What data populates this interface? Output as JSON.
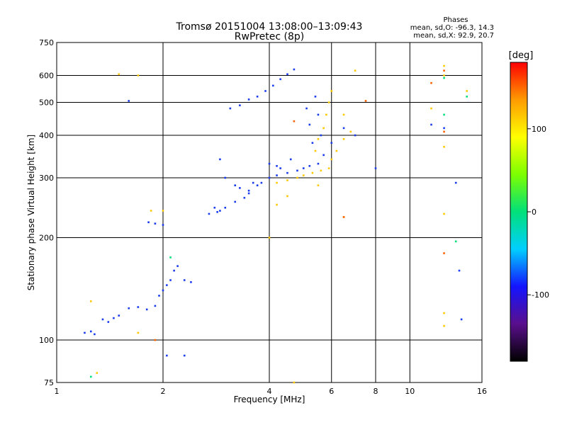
{
  "header": {
    "title": "Tromsø 20151004 13:08:00–13:09:43",
    "subtitle": "RwPretec (8p)"
  },
  "phases": {
    "heading": "Phases",
    "line1": "mean, sd,O: -96.3, 14.3",
    "line2": "mean, sd,X:  92.9, 20.7"
  },
  "colorbar": {
    "label": "[deg]",
    "min": -180,
    "max": 180,
    "ticks": [
      100,
      0,
      -100
    ],
    "tick_labels": [
      "100",
      "0",
      "-100"
    ],
    "stops": [
      "#000000",
      "#5a0f8c",
      "#1414ff",
      "#00cfff",
      "#00e07a",
      "#7cff00",
      "#ffff00",
      "#ff9b00",
      "#ff0000"
    ]
  },
  "chart_data": {
    "type": "scatter",
    "xlabel": "Frequency [MHz]",
    "ylabel": "Stationary phase Virtual Height [km]",
    "xscale": "log",
    "yscale": "log",
    "xlim": [
      1,
      16
    ],
    "ylim": [
      75,
      750
    ],
    "xticks": [
      1,
      2,
      4,
      6,
      8,
      10,
      16
    ],
    "xtick_labels": [
      "1",
      "2",
      "4",
      "6",
      "8",
      "10",
      "16"
    ],
    "yticks": [
      750,
      600,
      500,
      400,
      300,
      200,
      100,
      75
    ],
    "ytick_labels": [
      "750",
      "600",
      "500",
      "400",
      "300",
      "200",
      "100",
      "75"
    ],
    "grid": true,
    "series": [
      {
        "mode": "O",
        "color": "#1a3cf0",
        "points": [
          [
            1.2,
            105
          ],
          [
            1.25,
            106
          ],
          [
            1.28,
            104
          ],
          [
            1.35,
            115
          ],
          [
            1.4,
            113
          ],
          [
            1.45,
            116
          ],
          [
            1.5,
            118
          ],
          [
            1.6,
            124
          ],
          [
            1.7,
            125
          ],
          [
            1.8,
            123
          ],
          [
            1.9,
            126
          ],
          [
            1.95,
            135
          ],
          [
            2.0,
            140
          ],
          [
            2.05,
            145
          ],
          [
            2.1,
            150
          ],
          [
            2.15,
            160
          ],
          [
            2.2,
            165
          ],
          [
            2.3,
            150
          ],
          [
            2.4,
            148
          ],
          [
            1.82,
            222
          ],
          [
            1.9,
            220
          ],
          [
            2.0,
            218
          ],
          [
            2.05,
            90
          ],
          [
            2.7,
            235
          ],
          [
            2.8,
            245
          ],
          [
            2.85,
            238
          ],
          [
            2.9,
            240
          ],
          [
            3.0,
            245
          ],
          [
            3.2,
            255
          ],
          [
            3.4,
            262
          ],
          [
            3.5,
            270
          ],
          [
            3.7,
            285
          ],
          [
            3.8,
            290
          ],
          [
            4.0,
            300
          ],
          [
            4.2,
            305
          ],
          [
            4.5,
            310
          ],
          [
            4.8,
            315
          ],
          [
            5.0,
            320
          ],
          [
            5.2,
            325
          ],
          [
            5.5,
            330
          ],
          [
            3.1,
            480
          ],
          [
            3.3,
            490
          ],
          [
            3.5,
            510
          ],
          [
            3.7,
            520
          ],
          [
            3.9,
            540
          ],
          [
            4.1,
            560
          ],
          [
            4.3,
            585
          ],
          [
            4.5,
            605
          ],
          [
            4.7,
            625
          ],
          [
            5.1,
            480
          ],
          [
            5.2,
            430
          ],
          [
            5.3,
            380
          ],
          [
            5.4,
            520
          ],
          [
            5.5,
            460
          ],
          [
            5.6,
            400
          ],
          [
            5.7,
            350
          ],
          [
            2.9,
            340
          ],
          [
            3.0,
            300
          ],
          [
            3.3,
            280
          ],
          [
            3.5,
            275
          ],
          [
            4.0,
            330
          ],
          [
            4.3,
            320
          ],
          [
            4.6,
            340
          ],
          [
            3.2,
            285
          ],
          [
            3.6,
            290
          ],
          [
            4.2,
            325
          ],
          [
            6.0,
            380
          ],
          [
            6.5,
            420
          ],
          [
            7.0,
            400
          ],
          [
            8.0,
            320
          ],
          [
            11.5,
            430
          ],
          [
            12.5,
            420
          ],
          [
            13.5,
            290
          ],
          [
            13.8,
            160
          ],
          [
            14.0,
            115
          ],
          [
            1.6,
            505
          ],
          [
            2.3,
            90
          ]
        ]
      },
      {
        "mode": "X",
        "color": "#ffc800",
        "points": [
          [
            4.2,
            290
          ],
          [
            4.5,
            295
          ],
          [
            4.8,
            300
          ],
          [
            5.0,
            305
          ],
          [
            5.3,
            310
          ],
          [
            5.6,
            315
          ],
          [
            5.9,
            320
          ],
          [
            6.0,
            340
          ],
          [
            6.2,
            360
          ],
          [
            6.5,
            390
          ],
          [
            6.8,
            410
          ],
          [
            5.4,
            360
          ],
          [
            5.5,
            390
          ],
          [
            5.7,
            420
          ],
          [
            5.8,
            460
          ],
          [
            5.9,
            500
          ],
          [
            6.0,
            540
          ],
          [
            6.5,
            460
          ],
          [
            1.85,
            240
          ],
          [
            2.0,
            240
          ],
          [
            1.5,
            605
          ],
          [
            1.7,
            600
          ],
          [
            12.5,
            640
          ],
          [
            12.5,
            600
          ],
          [
            14.5,
            540
          ],
          [
            12.5,
            370
          ],
          [
            12.5,
            235
          ],
          [
            12.5,
            120
          ],
          [
            12.5,
            110
          ],
          [
            11.5,
            480
          ],
          [
            1.3,
            80
          ],
          [
            1.25,
            130
          ],
          [
            1.7,
            105
          ],
          [
            4.0,
            200
          ],
          [
            6.5,
            230
          ],
          [
            7.0,
            620
          ],
          [
            4.7,
            75
          ],
          [
            4.2,
            250
          ],
          [
            4.5,
            265
          ],
          [
            5.5,
            285
          ]
        ]
      },
      {
        "mode": "other",
        "color": "#ff6000",
        "points": [
          [
            7.5,
            505
          ],
          [
            12.5,
            620
          ],
          [
            12.5,
            410
          ],
          [
            12.5,
            180
          ],
          [
            11.5,
            570
          ],
          [
            6.5,
            230
          ],
          [
            4.7,
            440
          ],
          [
            1.9,
            100
          ]
        ]
      },
      {
        "mode": "other",
        "color": "#00e07a",
        "points": [
          [
            14.5,
            520
          ],
          [
            12.5,
            590
          ],
          [
            13.5,
            195
          ],
          [
            1.25,
            78
          ],
          [
            2.1,
            175
          ],
          [
            12.5,
            460
          ]
        ]
      }
    ]
  }
}
